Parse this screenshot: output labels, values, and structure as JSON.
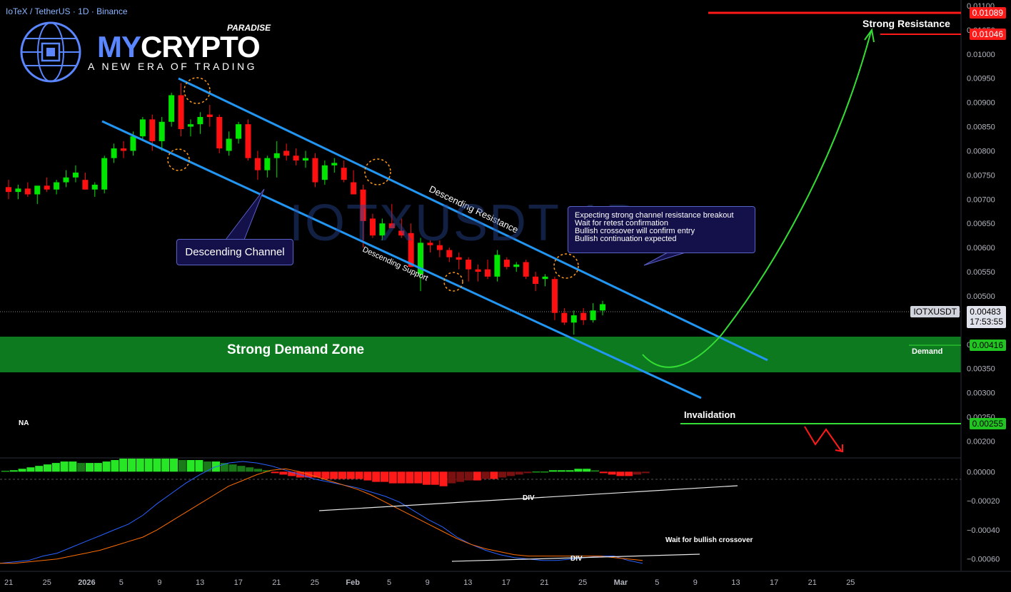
{
  "header": {
    "title": "IoTeX / TetherUS · 1D · Binance"
  },
  "watermark": "IOTXUSDT 1D",
  "logo": {
    "brand_a": "MY",
    "brand_b": "CRYPTO",
    "brand_c": "PARADISE",
    "tagline": "A NEW ERA OF TRADING"
  },
  "annotations": {
    "descending_channel": "Descending Channel",
    "descending_resistance": "Descending Resistance",
    "descending_support": "Descending Support",
    "note_lines": [
      "Expecting strong channel resistance breakout",
      "Wait for retest confirmation",
      "Bullish crossover will confirm entry",
      "Bullish continuation expected"
    ],
    "strong_demand_zone": "Strong Demand  Zone",
    "demand": "Demand",
    "strong_resistance": "Strong Resistance",
    "invalidation": "Invalidation",
    "na": "NA",
    "div1": "DIV",
    "div2": "DIV",
    "wait_crossover": "Wait for bullish crossover"
  },
  "price_tags": {
    "res1": "0.01089",
    "res2": "0.01046",
    "symbol": "IOTXUSDT",
    "last": "0.00483",
    "countdown": "17:53:55",
    "demand": "0.00416",
    "invalidation": "0.00255"
  },
  "colors": {
    "up": "#00e600",
    "down": "#ff1010",
    "channel": "#2196f3",
    "demand_zone": "#0d7a1f",
    "resistance": "#ff1a1a",
    "projection": "#33dd33",
    "macd_line": "#2962ff",
    "signal_line": "#ff6d00"
  },
  "chart_data": {
    "type": "candlestick",
    "price_axis": {
      "min": 0.0018,
      "max": 0.011,
      "ticks": [
        "0.01100",
        "0.01050",
        "0.01000",
        "0.00950",
        "0.00900",
        "0.00850",
        "0.00800",
        "0.00750",
        "0.00700",
        "0.00650",
        "0.00600",
        "0.00550",
        "0.00500",
        "0.00450",
        "0.00400",
        "0.00350",
        "0.00300",
        "0.00250",
        "0.00200"
      ]
    },
    "x_labels": [
      "21",
      "25",
      "2026",
      "5",
      "9",
      "13",
      "17",
      "21",
      "25",
      "Feb",
      "5",
      "9",
      "13",
      "17",
      "21",
      "25",
      "Mar",
      "5",
      "9",
      "13",
      "17",
      "21",
      "25"
    ],
    "candles": [
      [
        0.00725,
        0.0074,
        0.007,
        0.00715
      ],
      [
        0.00715,
        0.0073,
        0.007,
        0.00722
      ],
      [
        0.00722,
        0.00735,
        0.00705,
        0.0071
      ],
      [
        0.0071,
        0.00725,
        0.0069,
        0.00728
      ],
      [
        0.00728,
        0.00745,
        0.00715,
        0.0072
      ],
      [
        0.0072,
        0.0074,
        0.0071,
        0.00735
      ],
      [
        0.00735,
        0.0076,
        0.00725,
        0.00745
      ],
      [
        0.00745,
        0.0077,
        0.00735,
        0.00755
      ],
      [
        0.0074,
        0.00755,
        0.0072,
        0.0072
      ],
      [
        0.0072,
        0.00735,
        0.00705,
        0.0073
      ],
      [
        0.0072,
        0.0079,
        0.00712,
        0.00785
      ],
      [
        0.00785,
        0.00815,
        0.00775,
        0.00805
      ],
      [
        0.00805,
        0.0082,
        0.00785,
        0.008
      ],
      [
        0.008,
        0.0084,
        0.0079,
        0.0083
      ],
      [
        0.0083,
        0.0087,
        0.0082,
        0.00865
      ],
      [
        0.00865,
        0.00875,
        0.008,
        0.0082
      ],
      [
        0.0082,
        0.0087,
        0.008,
        0.0086
      ],
      [
        0.0086,
        0.0092,
        0.0085,
        0.00915
      ],
      [
        0.00915,
        0.0094,
        0.0083,
        0.00845
      ],
      [
        0.0085,
        0.00865,
        0.0083,
        0.00855
      ],
      [
        0.00855,
        0.0088,
        0.00835,
        0.0087
      ],
      [
        0.00875,
        0.00895,
        0.0085,
        0.0087
      ],
      [
        0.0087,
        0.00875,
        0.00795,
        0.00805
      ],
      [
        0.008,
        0.0084,
        0.0079,
        0.00825
      ],
      [
        0.00825,
        0.0086,
        0.00815,
        0.00855
      ],
      [
        0.00855,
        0.00865,
        0.0078,
        0.00785
      ],
      [
        0.00785,
        0.008,
        0.0074,
        0.0076
      ],
      [
        0.0076,
        0.0079,
        0.00745,
        0.00785
      ],
      [
        0.00785,
        0.0082,
        0.00745,
        0.00795
      ],
      [
        0.008,
        0.00815,
        0.0078,
        0.0079
      ],
      [
        0.0079,
        0.00805,
        0.0077,
        0.0078
      ],
      [
        0.0078,
        0.008,
        0.00765,
        0.00785
      ],
      [
        0.00785,
        0.00795,
        0.00725,
        0.00735
      ],
      [
        0.0074,
        0.0078,
        0.0073,
        0.0077
      ],
      [
        0.0077,
        0.00785,
        0.00755,
        0.00775
      ],
      [
        0.00765,
        0.0078,
        0.00735,
        0.0074
      ],
      [
        0.00735,
        0.0076,
        0.00715,
        0.0071
      ],
      [
        0.0072,
        0.0073,
        0.006,
        0.00655
      ],
      [
        0.0066,
        0.0067,
        0.0062,
        0.00625
      ],
      [
        0.00625,
        0.0066,
        0.00615,
        0.0065
      ],
      [
        0.0065,
        0.0069,
        0.0064,
        0.0064
      ],
      [
        0.00635,
        0.0066,
        0.0062,
        0.00625
      ],
      [
        0.0063,
        0.0065,
        0.0056,
        0.0056
      ],
      [
        0.00545,
        0.0062,
        0.0051,
        0.0061
      ],
      [
        0.0061,
        0.00615,
        0.0059,
        0.00605
      ],
      [
        0.00605,
        0.00615,
        0.0058,
        0.00595
      ],
      [
        0.00595,
        0.006,
        0.0057,
        0.0058
      ],
      [
        0.0058,
        0.0059,
        0.00555,
        0.00575
      ],
      [
        0.00575,
        0.0058,
        0.0053,
        0.00555
      ],
      [
        0.00555,
        0.00565,
        0.0053,
        0.0055
      ],
      [
        0.00555,
        0.00575,
        0.00535,
        0.0054
      ],
      [
        0.0054,
        0.00595,
        0.0053,
        0.00585
      ],
      [
        0.00575,
        0.0058,
        0.00555,
        0.0056
      ],
      [
        0.0056,
        0.0057,
        0.0055,
        0.00565
      ],
      [
        0.0057,
        0.00575,
        0.00535,
        0.0054
      ],
      [
        0.0054,
        0.0055,
        0.0051,
        0.00525
      ],
      [
        0.00535,
        0.00545,
        0.0052,
        0.0054
      ],
      [
        0.00535,
        0.0054,
        0.0045,
        0.00465
      ],
      [
        0.00465,
        0.00475,
        0.0044,
        0.00445
      ],
      [
        0.00445,
        0.0047,
        0.0042,
        0.0046
      ],
      [
        0.00465,
        0.00475,
        0.0044,
        0.0045
      ],
      [
        0.0045,
        0.00485,
        0.00445,
        0.0047
      ],
      [
        0.0047,
        0.0049,
        0.0046,
        0.00483
      ]
    ],
    "macd_axis": {
      "ticks": [
        "0.00000",
        "−0.00020",
        "−0.00040",
        "−0.00060"
      ],
      "min": -0.00067,
      "max": 8e-05
    },
    "histogram": [
      5e-06,
      1e-05,
      2e-05,
      3e-05,
      4e-05,
      5e-05,
      6e-05,
      7e-05,
      7e-05,
      6e-05,
      6e-05,
      6e-05,
      7e-05,
      8e-05,
      9e-05,
      9e-05,
      9e-05,
      9e-05,
      9e-05,
      9e-05,
      9e-05,
      8e-05,
      8e-05,
      8e-05,
      7e-05,
      7e-05,
      6e-05,
      5e-05,
      4e-05,
      3e-05,
      2e-05,
      1e-05,
      -1e-05,
      -2e-05,
      -3e-05,
      -4e-05,
      -4e-05,
      -4e-05,
      -5e-05,
      -5e-05,
      -5e-05,
      -5e-05,
      -5e-05,
      -6e-05,
      -7e-05,
      -7e-05,
      -8e-05,
      -8e-05,
      -8e-05,
      -8e-05,
      -9e-05,
      -9e-05,
      -0.0001,
      -8e-05,
      -7e-05,
      -6e-05,
      -6e-05,
      -5e-05,
      -5e-05,
      -4e-05,
      -3e-05,
      -2e-05,
      -1e-05,
      0.0,
      0.0,
      1e-05,
      1e-05,
      1e-05,
      2e-05,
      2e-05,
      1e-05,
      -1e-05,
      -2e-05,
      -3e-05,
      -3e-05,
      -2e-05,
      -1e-05
    ],
    "macd_line": [
      -0.00063,
      -0.00062,
      -0.00061,
      -0.00058,
      -0.00056,
      -0.00052,
      -0.00048,
      -0.00044,
      -0.0004,
      -0.00036,
      -0.0003,
      -0.00022,
      -0.00015,
      -8e-05,
      -2e-05,
      3e-05,
      6e-05,
      7e-05,
      6e-05,
      4e-05,
      1e-05,
      -2e-05,
      -5e-05,
      -7e-05,
      -9e-05,
      -0.00011,
      -0.00014,
      -0.00017,
      -0.00021,
      -0.00027,
      -0.00033,
      -0.00038,
      -0.00045,
      -0.0005,
      -0.00054,
      -0.00057,
      -0.00059,
      -0.0006,
      -0.00061,
      -0.00061,
      -0.0006,
      -0.00059,
      -0.00058,
      -0.00058,
      -0.00061,
      -0.00063
    ],
    "signal_line": [
      -0.00063,
      -0.00063,
      -0.00062,
      -0.00061,
      -0.0006,
      -0.00058,
      -0.00056,
      -0.00054,
      -0.00051,
      -0.00048,
      -0.00045,
      -0.0004,
      -0.00034,
      -0.00028,
      -0.00022,
      -0.00016,
      -0.0001,
      -6e-05,
      -2e-05,
      1e-05,
      2e-05,
      0.0,
      -3e-05,
      -6e-05,
      -9e-05,
      -0.00012,
      -0.00016,
      -0.00021,
      -0.00026,
      -0.00031,
      -0.00036,
      -0.00041,
      -0.00046,
      -0.0005,
      -0.00053,
      -0.00055,
      -0.00057,
      -0.00058,
      -0.00058,
      -0.00058,
      -0.00058,
      -0.00058,
      -0.00058,
      -0.00059,
      -0.0006,
      -0.00061
    ]
  }
}
